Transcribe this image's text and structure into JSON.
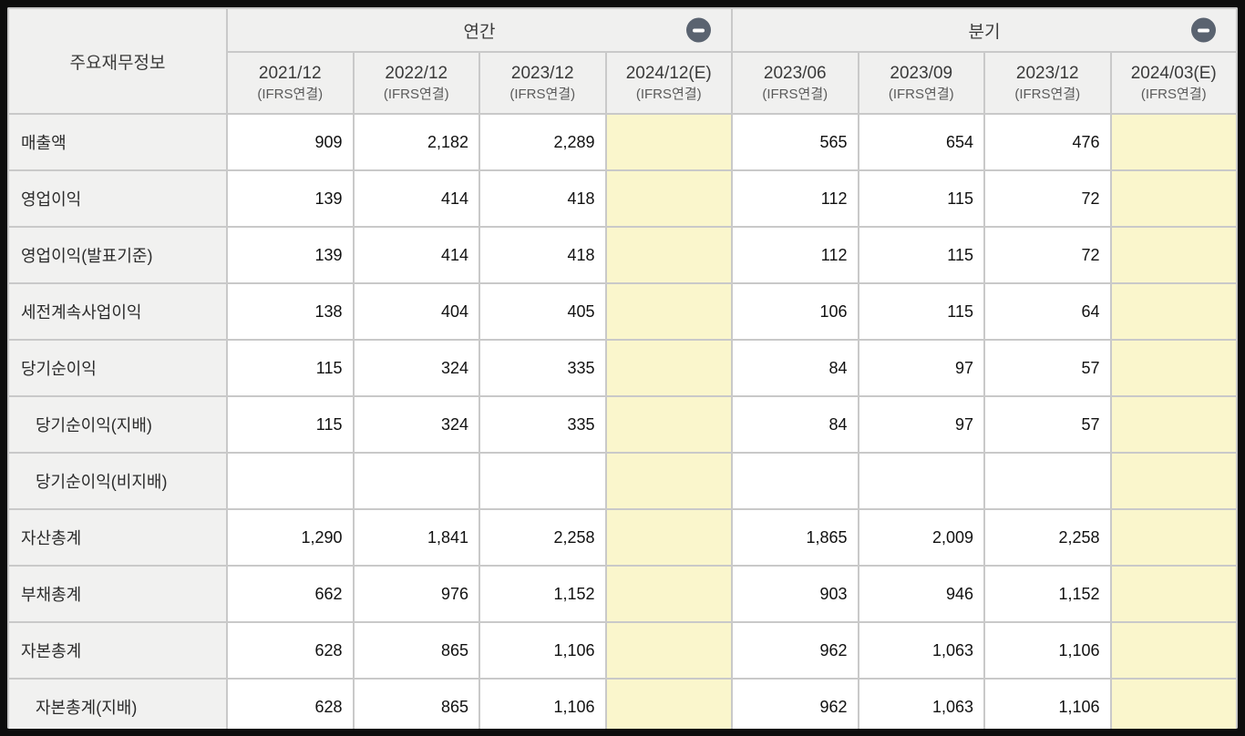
{
  "table": {
    "corner_label": "주요재무정보",
    "groups": [
      {
        "id": "annual",
        "label": "연간"
      },
      {
        "id": "quarterly",
        "label": "분기"
      }
    ],
    "columns": [
      {
        "period": "2021/12",
        "basis": "(IFRS연결)",
        "estimate": false
      },
      {
        "period": "2022/12",
        "basis": "(IFRS연결)",
        "estimate": false
      },
      {
        "period": "2023/12",
        "basis": "(IFRS연결)",
        "estimate": false
      },
      {
        "period": "2024/12(E)",
        "basis": "(IFRS연결)",
        "estimate": true
      },
      {
        "period": "2023/06",
        "basis": "(IFRS연결)",
        "estimate": false
      },
      {
        "period": "2023/09",
        "basis": "(IFRS연결)",
        "estimate": false
      },
      {
        "period": "2023/12",
        "basis": "(IFRS연결)",
        "estimate": false
      },
      {
        "period": "2024/03(E)",
        "basis": "(IFRS연결)",
        "estimate": true
      }
    ],
    "rows": [
      {
        "label": "매출액",
        "indent": false,
        "values": [
          "909",
          "2,182",
          "2,289",
          "",
          "565",
          "654",
          "476",
          ""
        ]
      },
      {
        "label": "영업이익",
        "indent": false,
        "values": [
          "139",
          "414",
          "418",
          "",
          "112",
          "115",
          "72",
          ""
        ]
      },
      {
        "label": "영업이익(발표기준)",
        "indent": false,
        "values": [
          "139",
          "414",
          "418",
          "",
          "112",
          "115",
          "72",
          ""
        ]
      },
      {
        "label": "세전계속사업이익",
        "indent": false,
        "values": [
          "138",
          "404",
          "405",
          "",
          "106",
          "115",
          "64",
          ""
        ]
      },
      {
        "label": "당기순이익",
        "indent": false,
        "values": [
          "115",
          "324",
          "335",
          "",
          "84",
          "97",
          "57",
          ""
        ]
      },
      {
        "label": "당기순이익(지배)",
        "indent": true,
        "values": [
          "115",
          "324",
          "335",
          "",
          "84",
          "97",
          "57",
          ""
        ]
      },
      {
        "label": "당기순이익(비지배)",
        "indent": true,
        "values": [
          "",
          "",
          "",
          "",
          "",
          "",
          "",
          ""
        ]
      },
      {
        "label": "자산총계",
        "indent": false,
        "values": [
          "1,290",
          "1,841",
          "2,258",
          "",
          "1,865",
          "2,009",
          "2,258",
          ""
        ]
      },
      {
        "label": "부채총계",
        "indent": false,
        "values": [
          "662",
          "976",
          "1,152",
          "",
          "903",
          "946",
          "1,152",
          ""
        ]
      },
      {
        "label": "자본총계",
        "indent": false,
        "values": [
          "628",
          "865",
          "1,106",
          "",
          "962",
          "1,063",
          "1,106",
          ""
        ]
      },
      {
        "label": "자본총계(지배)",
        "indent": true,
        "values": [
          "628",
          "865",
          "1,106",
          "",
          "962",
          "1,063",
          "1,106",
          ""
        ]
      }
    ]
  },
  "icons": {
    "annual_collapse": "minus-icon",
    "quarterly_collapse": "minus-icon"
  },
  "colors": {
    "frame": "#0D0D0D",
    "header_bg": "#F0F0EF",
    "label_bg": "#F1F1F0",
    "cell_bg": "#FFFFFF",
    "estimate_bg": "#FAF6CC",
    "grid": "#C9C9C9",
    "collapse_button_bg": "#5A6370",
    "collapse_glyph": "#FFFFFF",
    "header_text": "#3A3A3A",
    "basis_text": "#5A5A5A",
    "label_text": "#2B2B2B",
    "value_text": "#111111"
  }
}
